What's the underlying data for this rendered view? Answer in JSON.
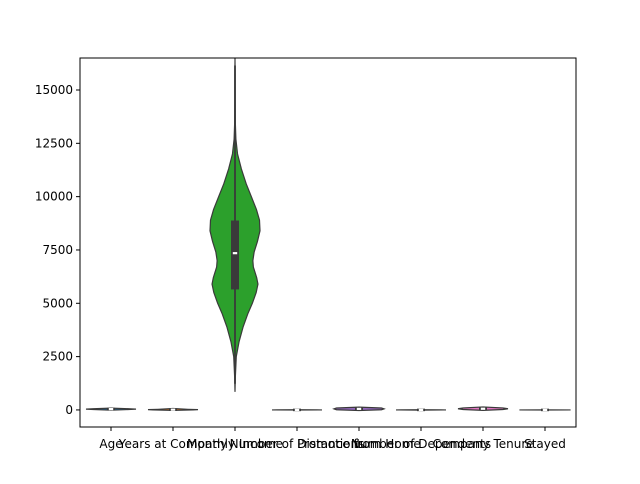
{
  "chart_data": {
    "type": "violin",
    "title": "",
    "xlabel": "",
    "ylabel": "",
    "categories": [
      "Age",
      "Years at Company",
      "Monthly Income",
      "Number of Promotions",
      "Distance from Home",
      "Number of Dependents",
      "Company Tenure",
      "Stayed"
    ],
    "ylim": [
      -800,
      16500
    ],
    "yticks": [
      0,
      2500,
      5000,
      7500,
      10000,
      12500,
      15000
    ],
    "ytick_labels": [
      "0",
      "2500",
      "5000",
      "7500",
      "10000",
      "12500",
      "15000"
    ],
    "grid": false,
    "colors": {
      "violins": [
        "#1f77b4",
        "#ff7f0e",
        "#2ca02c",
        "#d62728",
        "#9467bd",
        "#8c564b",
        "#e377c2",
        "#7f7f7f"
      ],
      "box": "#3a3a3a",
      "median": "#ffffff"
    },
    "violins": [
      {
        "name": "Age",
        "min": 18,
        "q1": 28,
        "median": 39,
        "q3": 49,
        "max": 59,
        "density": [
          [
            -10,
            0
          ],
          [
            18,
            0.7
          ],
          [
            39,
            1.0
          ],
          [
            59,
            0.7
          ],
          [
            85,
            0
          ]
        ]
      },
      {
        "name": "Years at Company",
        "min": 1,
        "q1": 7,
        "median": 13,
        "q3": 23,
        "max": 51,
        "density": [
          [
            -20,
            0
          ],
          [
            1,
            0.8
          ],
          [
            13,
            1.0
          ],
          [
            30,
            0.6
          ],
          [
            70,
            0
          ]
        ]
      },
      {
        "name": "Monthly Income",
        "min": 1226,
        "q1": 5650,
        "median": 7350,
        "q3": 8880,
        "max": 16149,
        "density": [
          [
            850,
            0
          ],
          [
            1500,
            0.012
          ],
          [
            2500,
            0.05
          ],
          [
            3200,
            0.16
          ],
          [
            3900,
            0.32
          ],
          [
            4500,
            0.5
          ],
          [
            5000,
            0.68
          ],
          [
            5500,
            0.83
          ],
          [
            5900,
            0.9
          ],
          [
            6200,
            0.85
          ],
          [
            6700,
            0.72
          ],
          [
            7000,
            0.7
          ],
          [
            7400,
            0.75
          ],
          [
            7900,
            0.88
          ],
          [
            8400,
            0.98
          ],
          [
            8900,
            0.96
          ],
          [
            9400,
            0.84
          ],
          [
            10000,
            0.64
          ],
          [
            10600,
            0.44
          ],
          [
            11300,
            0.25
          ],
          [
            12000,
            0.1
          ],
          [
            12700,
            0.035
          ],
          [
            13400,
            0.015
          ],
          [
            14500,
            0.008
          ],
          [
            15600,
            0.006
          ],
          [
            16500,
            0
          ]
        ]
      },
      {
        "name": "Number of Promotions",
        "min": 0,
        "q1": 0,
        "median": 1,
        "q3": 2,
        "max": 4,
        "density": [
          [
            -5,
            0
          ],
          [
            0,
            0.9
          ],
          [
            1,
            1.0
          ],
          [
            2,
            0.8
          ],
          [
            8,
            0
          ]
        ]
      },
      {
        "name": "Distance from Home",
        "min": 1,
        "q1": 25,
        "median": 50,
        "q3": 75,
        "max": 99,
        "density": [
          [
            -30,
            0
          ],
          [
            10,
            0.9
          ],
          [
            50,
            1.0
          ],
          [
            90,
            0.9
          ],
          [
            130,
            0
          ]
        ]
      },
      {
        "name": "Number of Dependents",
        "min": 0,
        "q1": 0,
        "median": 1,
        "q3": 3,
        "max": 6,
        "density": [
          [
            -8,
            0
          ],
          [
            0,
            0.9
          ],
          [
            1,
            1.0
          ],
          [
            3,
            0.8
          ],
          [
            12,
            0
          ]
        ]
      },
      {
        "name": "Company Tenure",
        "min": 2,
        "q1": 36,
        "median": 56,
        "q3": 76,
        "max": 128,
        "density": [
          [
            -20,
            0
          ],
          [
            20,
            0.8
          ],
          [
            56,
            1.0
          ],
          [
            90,
            0.8
          ],
          [
            140,
            0
          ]
        ]
      },
      {
        "name": "Stayed",
        "min": 0,
        "q1": 0,
        "median": 1,
        "q3": 1,
        "max": 1,
        "density": [
          [
            -2,
            0
          ],
          [
            0,
            1.0
          ],
          [
            1,
            1.0
          ],
          [
            3,
            0
          ]
        ]
      }
    ]
  }
}
